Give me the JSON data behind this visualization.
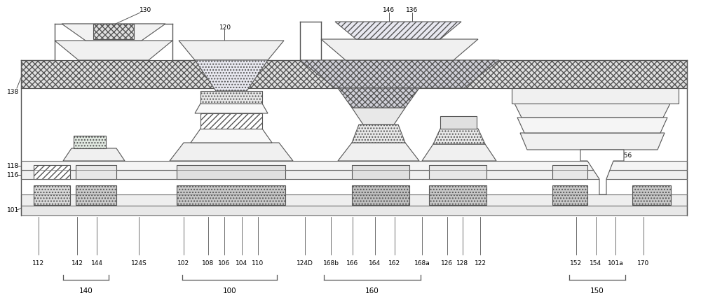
{
  "bg_color": "#ffffff",
  "line_color": "#555555",
  "fig_width": 10.0,
  "fig_height": 4.36,
  "bottom_labels": [
    [
      "112",
      0.55
    ],
    [
      "142",
      1.1
    ],
    [
      "144",
      1.38
    ],
    [
      "124S",
      1.98
    ],
    [
      "102",
      2.62
    ],
    [
      "108",
      2.97
    ],
    [
      "106",
      3.2
    ],
    [
      "104",
      3.45
    ],
    [
      "110",
      3.68
    ],
    [
      "124D",
      4.35
    ],
    [
      "168b",
      4.72
    ],
    [
      "166",
      5.03
    ],
    [
      "164",
      5.35
    ],
    [
      "162",
      5.63
    ],
    [
      "168a",
      6.02
    ],
    [
      "126",
      6.38
    ],
    [
      "128",
      6.6
    ],
    [
      "122",
      6.85
    ],
    [
      "152",
      8.22
    ],
    [
      "154",
      8.5
    ],
    [
      "101a",
      8.78
    ],
    [
      "170",
      9.18
    ]
  ],
  "bracket_groups": [
    [
      "140",
      0.9,
      1.55
    ],
    [
      "100",
      2.6,
      3.95
    ],
    [
      "160",
      4.62,
      6.0
    ],
    [
      "150",
      8.12,
      8.92
    ]
  ]
}
